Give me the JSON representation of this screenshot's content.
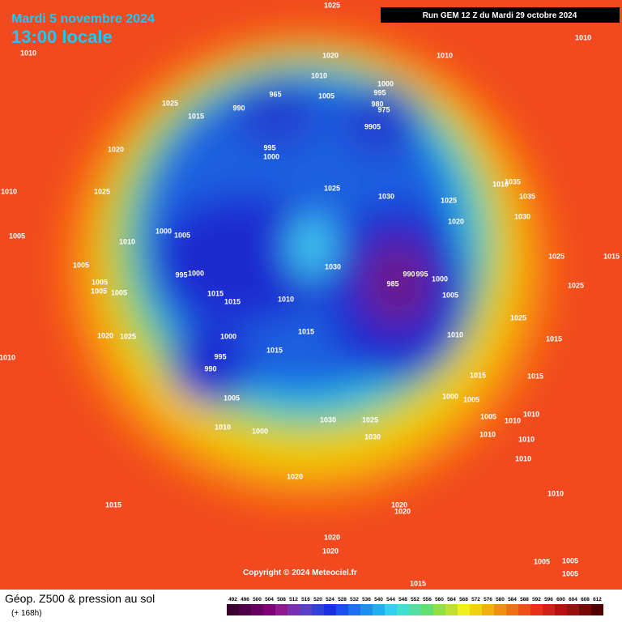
{
  "header": {
    "date": "Mardi 5 novembre 2024",
    "time": "13:00 locale",
    "run": "Run GEM 12 Z du Mardi 29 octobre 2024"
  },
  "footer": {
    "copyright": "Copyright © 2024 Meteociel.fr",
    "product": "Géop. Z500 & pression au sol",
    "lead": "(+ 168h)",
    "scale": [
      492,
      496,
      500,
      504,
      508,
      512,
      516,
      520,
      524,
      528,
      532,
      536,
      540,
      544,
      548,
      552,
      556,
      560,
      564,
      568,
      572,
      576,
      580,
      584,
      588,
      592,
      596,
      600,
      604,
      608,
      612
    ]
  },
  "isobar_labels": [
    "1025",
    "1010",
    "1010",
    "1020",
    "1010",
    "1010",
    "1000",
    "965",
    "995",
    "1005",
    "980",
    "1025",
    "990",
    "975",
    "1015",
    "9905",
    "1020",
    "995",
    "1000",
    "1010",
    "1025",
    "1025",
    "1030",
    "1025",
    "1010",
    "1035",
    "1035",
    "1030",
    "1020",
    "1005",
    "1000",
    "1005",
    "1010",
    "1025",
    "1005",
    "1030",
    "995",
    "1000",
    "990",
    "995",
    "1000",
    "1005",
    "1005",
    "1005",
    "985",
    "1025",
    "1015",
    "1015",
    "1010",
    "1005",
    "1025",
    "1015",
    "1020",
    "1025",
    "1000",
    "1010",
    "1015",
    "1010",
    "1015",
    "995",
    "990",
    "1015",
    "1015",
    "1000",
    "1005",
    "1005",
    "1010",
    "1005",
    "1010",
    "1010",
    "1000",
    "1030",
    "1025",
    "1030",
    "1010",
    "1010",
    "1010",
    "1020",
    "1015",
    "1020",
    "1020",
    "1010",
    "1020",
    "1020",
    "1005",
    "1005",
    "1005",
    "1015",
    "1015"
  ]
}
